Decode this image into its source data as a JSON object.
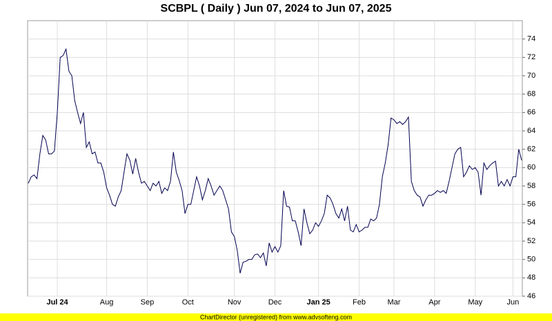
{
  "chart_data": {
    "type": "line",
    "title": "SCBPL ( Daily ) Jun 07, 2024 to Jun 07, 2025",
    "footer": "ChartDirector (unregistered) from www.advsofteng.com",
    "categories": [
      null,
      null,
      null,
      null,
      null,
      null,
      null,
      null,
      null,
      null,
      "Jul 24",
      null,
      null,
      null,
      null,
      null,
      null,
      null,
      null,
      null,
      null,
      null,
      null,
      null,
      null,
      null,
      null,
      "Aug",
      null,
      null,
      null,
      null,
      null,
      null,
      null,
      null,
      null,
      null,
      null,
      null,
      null,
      "Sep",
      null,
      null,
      null,
      null,
      null,
      null,
      null,
      null,
      null,
      null,
      null,
      null,
      null,
      "Oct",
      null,
      null,
      null,
      null,
      null,
      null,
      null,
      null,
      null,
      null,
      null,
      null,
      null,
      null,
      null,
      "Nov",
      null,
      null,
      null,
      null,
      null,
      null,
      null,
      null,
      null,
      null,
      null,
      null,
      null,
      "Dec",
      null,
      null,
      null,
      null,
      null,
      null,
      null,
      null,
      null,
      null,
      null,
      null,
      null,
      null,
      "Jan 25",
      null,
      null,
      null,
      null,
      null,
      null,
      null,
      null,
      null,
      null,
      null,
      null,
      null,
      "Feb",
      null,
      null,
      null,
      null,
      null,
      null,
      null,
      null,
      null,
      null,
      null,
      "Mar",
      null,
      null,
      null,
      null,
      null,
      null,
      null,
      null,
      null,
      null,
      null,
      null,
      null,
      "Apr",
      null,
      null,
      null,
      null,
      null,
      null,
      null,
      null,
      null,
      null,
      null,
      null,
      null,
      "May",
      null,
      null,
      null,
      null,
      null,
      null,
      null,
      null,
      null,
      null,
      null,
      null,
      "Jun",
      null,
      null,
      null
    ],
    "series": [
      {
        "name": "SCBPL",
        "color": "#000050",
        "values": [
          58.3,
          59,
          59.2,
          58.8,
          61.5,
          63.5,
          63,
          61.5,
          61.5,
          61.8,
          66,
          72,
          72.2,
          72.9,
          70.5,
          70,
          67.3,
          66,
          64.8,
          66,
          62.2,
          62.8,
          61.5,
          61.7,
          60.5,
          60.5,
          59.5,
          57.8,
          57,
          56,
          55.8,
          56.8,
          57.5,
          59.5,
          61.5,
          60.8,
          59.3,
          61,
          59.5,
          58.3,
          58.5,
          58,
          57.5,
          58.3,
          58,
          58.5,
          57.2,
          57.8,
          57.5,
          58.5,
          61.7,
          59.5,
          58.6,
          57.5,
          55,
          56,
          56,
          57.5,
          59,
          58,
          56.5,
          57.5,
          58.8,
          58,
          57,
          57.5,
          58,
          57.5,
          56.5,
          55.5,
          53,
          52.5,
          51,
          48.5,
          49.7,
          49.8,
          50,
          50,
          50.5,
          50.6,
          50.2,
          50.7,
          49.3,
          51.8,
          50.8,
          51.4,
          50.8,
          51.5,
          57.5,
          55.8,
          55.7,
          54.2,
          54.2,
          53,
          51.5,
          55.5,
          54,
          52.8,
          53.2,
          54,
          53.6,
          54.2,
          55,
          57,
          56.7,
          56,
          55,
          54.5,
          55.5,
          54.2,
          55.8,
          53.2,
          53,
          53.8,
          53,
          53.2,
          53.5,
          53.5,
          54.4,
          54.2,
          54.5,
          56,
          59,
          60.5,
          62.5,
          65.4,
          65.2,
          64.8,
          65,
          64.7,
          65,
          65.5,
          58.5,
          57.5,
          57,
          56.8,
          55.8,
          56.5,
          57,
          57,
          57.2,
          57.5,
          57.3,
          57.5,
          57.2,
          58.5,
          60,
          61.5,
          62,
          62.2,
          59,
          59.5,
          60.2,
          59.8,
          60,
          59.5,
          57,
          60.5,
          59.8,
          60.2,
          60.5,
          60.7,
          58,
          58.5,
          58,
          58.7,
          58,
          59,
          59,
          62,
          60.8
        ]
      }
    ],
    "ylim": [
      46,
      76
    ],
    "yticks": [
      46,
      48,
      50,
      52,
      54,
      56,
      58,
      60,
      62,
      64,
      66,
      68,
      70,
      72,
      74
    ],
    "grid": true
  }
}
